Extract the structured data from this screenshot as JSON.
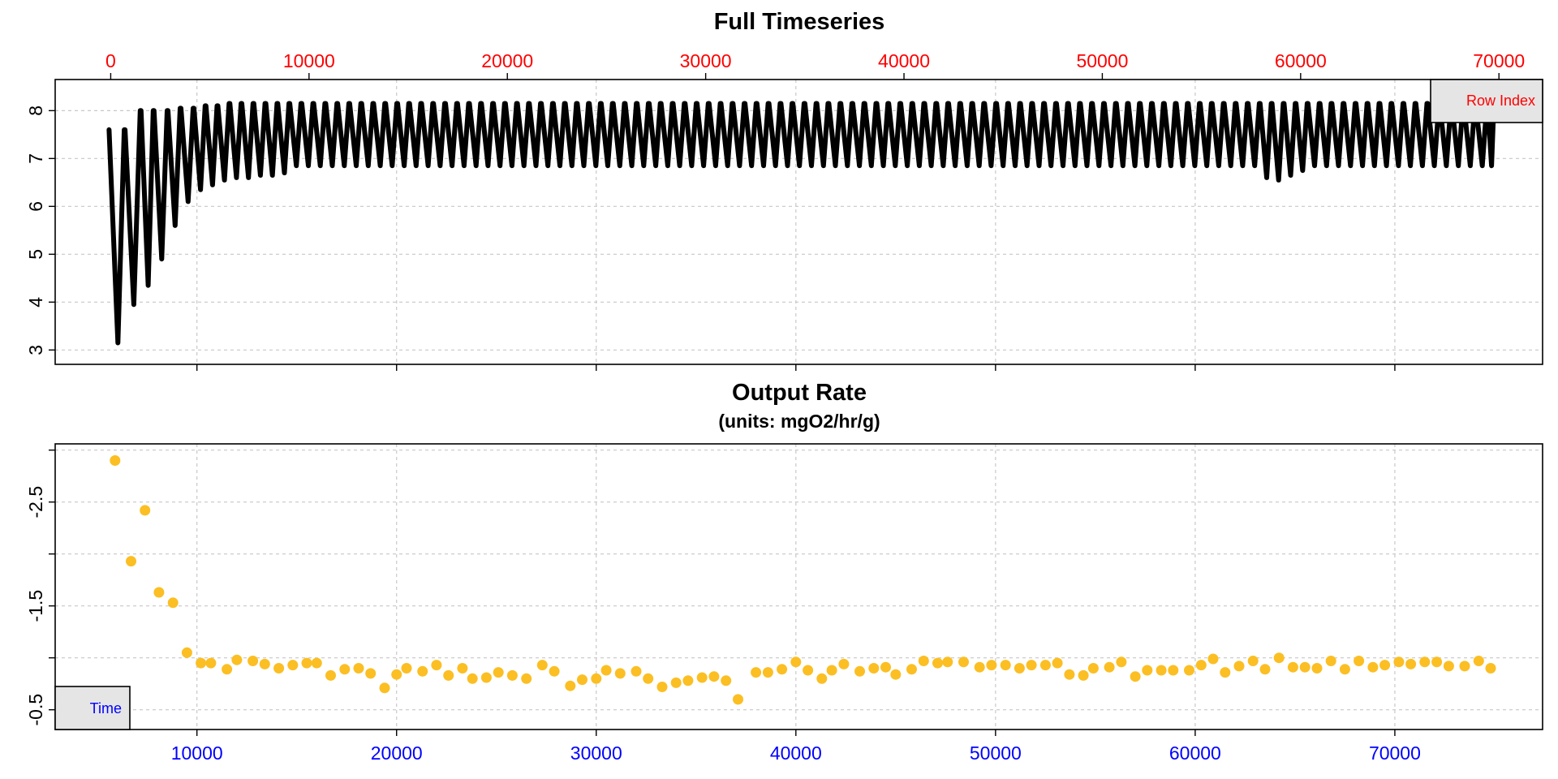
{
  "chart_data": [
    {
      "type": "scatter",
      "title": "Full Timeseries",
      "subtitle": "",
      "xlabel": "",
      "ylabel": "",
      "x_axis": {
        "position": "bottom",
        "ticks": [
          10000,
          20000,
          30000,
          40000,
          50000,
          60000,
          70000
        ],
        "tick_labels_shown": false
      },
      "x2_axis": {
        "position": "top",
        "label": "",
        "ticks": [
          0,
          10000,
          20000,
          30000,
          40000,
          50000,
          60000,
          70000
        ],
        "tick_color": "#ff0000"
      },
      "y_axis": {
        "ticks": [
          3,
          4,
          5,
          6,
          7,
          8
        ]
      },
      "xlim": [
        2900,
        77400
      ],
      "ylim": [
        2.7,
        8.65
      ],
      "x2lim": [
        -2800,
        72200
      ],
      "grid": true,
      "legend": {
        "label": "Row Index",
        "placement": "top-right",
        "text_color": "#ff0000"
      },
      "series": [
        {
          "color": "#000000",
          "x_start": 5600,
          "x_end": 75000,
          "cycles": [
            {
              "start": 5600,
              "top": 7.6,
              "min": 3.15
            },
            {
              "start": 6400,
              "top": 8.0,
              "min": 3.95
            },
            {
              "start": 7200,
              "top": 8.0,
              "min": 4.35
            },
            {
              "start": 7850,
              "top": 8.0,
              "min": 4.9
            },
            {
              "start": 8550,
              "top": 8.05,
              "min": 5.6
            },
            {
              "start": 9200,
              "top": 8.05,
              "min": 6.1
            },
            {
              "start": 9850,
              "top": 8.1,
              "min": 6.35
            },
            {
              "start": 10450,
              "top": 8.1,
              "min": 6.45
            },
            {
              "start": 11050,
              "top": 8.15,
              "min": 6.55
            },
            {
              "start": 11650,
              "top": 8.15,
              "min": 6.6
            },
            {
              "start": 12250,
              "top": 8.15,
              "min": 6.6
            },
            {
              "start": 12850,
              "top": 8.15,
              "min": 6.65
            },
            {
              "start": 13450,
              "top": 8.15,
              "min": 6.65
            },
            {
              "start": 14050,
              "top": 8.15,
              "min": 6.7
            }
          ],
          "steady_cycle": {
            "period": 600,
            "top": 8.15,
            "min": 6.85
          },
          "late_dip_cycles": [
            {
              "start": 63300,
              "min": 6.6
            },
            {
              "start": 63900,
              "min": 6.55
            },
            {
              "start": 64500,
              "min": 6.65
            },
            {
              "start": 65100,
              "min": 6.75
            }
          ]
        }
      ]
    },
    {
      "type": "scatter",
      "title": "Output Rate",
      "subtitle": "(units: mgO2/hr/g)",
      "xlabel": "",
      "ylabel": "",
      "x_axis": {
        "position": "bottom",
        "ticks": [
          10000,
          20000,
          30000,
          40000,
          50000,
          60000,
          70000
        ],
        "tick_color": "#0000ff"
      },
      "y_axis": {
        "ticks": [
          -3.0,
          -2.5,
          -2.0,
          -1.5,
          -1.0,
          -0.5
        ],
        "tick_labels": [
          "-2.5",
          "-1.5",
          "-0.5"
        ]
      },
      "xlim": [
        2900,
        77400
      ],
      "ylim": [
        -0.31,
        -3.06
      ],
      "grid": true,
      "legend": {
        "label": "Time",
        "placement": "bottom-left",
        "text_color": "#0000ff"
      },
      "series": [
        {
          "color": "#fbbf24",
          "x": [
            5900,
            6700,
            7400,
            8100,
            8800,
            9500,
            10200,
            10700,
            11500,
            12000,
            12800,
            13400,
            14100,
            14800,
            15500,
            16000,
            16700,
            17400,
            18100,
            18700,
            19400,
            20000,
            20500,
            21300,
            22000,
            22600,
            23300,
            23800,
            24500,
            25100,
            25800,
            26500,
            27300,
            27900,
            28700,
            29300,
            30000,
            30500,
            31200,
            32000,
            32600,
            33300,
            34000,
            34600,
            35300,
            35900,
            36500,
            37100,
            38000,
            38600,
            39300,
            40000,
            40600,
            41300,
            41800,
            42400,
            43200,
            43900,
            44500,
            45000,
            45800,
            46400,
            47100,
            47600,
            48400,
            49200,
            49800,
            50500,
            51200,
            51800,
            52500,
            53100,
            53700,
            54400,
            54900,
            55700,
            56300,
            57000,
            57600,
            58300,
            58900,
            59700,
            60300,
            60900,
            61500,
            62200,
            62900,
            63500,
            64200,
            64900,
            65500,
            66100,
            66800,
            67500,
            68200,
            68900,
            69500,
            70200,
            70800,
            71500,
            72100,
            72700,
            73500,
            74200,
            74800
          ],
          "y": [
            -2.9,
            -1.93,
            -2.42,
            -1.63,
            -1.53,
            -1.05,
            -0.95,
            -0.95,
            -0.89,
            -0.98,
            -0.97,
            -0.94,
            -0.9,
            -0.93,
            -0.95,
            -0.95,
            -0.83,
            -0.89,
            -0.9,
            -0.85,
            -0.71,
            -0.84,
            -0.9,
            -0.87,
            -0.93,
            -0.83,
            -0.9,
            -0.8,
            -0.81,
            -0.86,
            -0.83,
            -0.8,
            -0.93,
            -0.87,
            -0.73,
            -0.79,
            -0.8,
            -0.88,
            -0.85,
            -0.87,
            -0.8,
            -0.72,
            -0.76,
            -0.78,
            -0.81,
            -0.82,
            -0.78,
            -0.6,
            -0.86,
            -0.86,
            -0.89,
            -0.96,
            -0.88,
            -0.8,
            -0.88,
            -0.94,
            -0.87,
            -0.9,
            -0.91,
            -0.84,
            -0.89,
            -0.97,
            -0.95,
            -0.96,
            -0.96,
            -0.91,
            -0.93,
            -0.93,
            -0.9,
            -0.93,
            -0.93,
            -0.95,
            -0.84,
            -0.83,
            -0.9,
            -0.91,
            -0.96,
            -0.82,
            -0.88,
            -0.88,
            -0.88,
            -0.88,
            -0.93,
            -0.99,
            -0.86,
            -0.92,
            -0.97,
            -0.89,
            -1.0,
            -0.91,
            -0.91,
            -0.9,
            -0.97,
            -0.89,
            -0.97,
            -0.91,
            -0.93,
            -0.96,
            -0.94,
            -0.96,
            -0.96,
            -0.92,
            -0.92,
            -0.97,
            -0.9
          ]
        }
      ]
    }
  ]
}
